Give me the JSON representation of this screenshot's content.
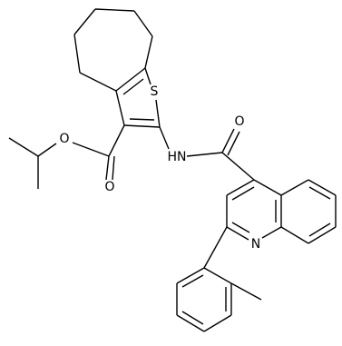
{
  "labels": [
    "S",
    "O",
    "O",
    "HN",
    "O",
    "N"
  ]
}
